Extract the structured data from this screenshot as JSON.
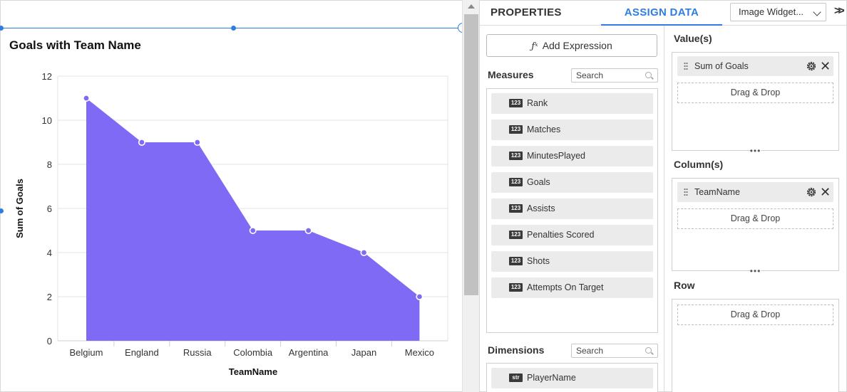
{
  "chart": {
    "title": "Goals with Team Name",
    "ylabel": "Sum of Goals",
    "xlabel": "TeamName"
  },
  "chart_data": {
    "type": "area",
    "title": "Goals with Team Name",
    "xlabel": "TeamName",
    "ylabel": "Sum of Goals",
    "categories": [
      "Belgium",
      "England",
      "Russia",
      "Colombia",
      "Argentina",
      "Japan",
      "Mexico"
    ],
    "values": [
      11,
      9,
      9,
      5,
      5,
      4,
      2
    ],
    "ylim": [
      0,
      12
    ],
    "yticks": [
      "0",
      "2",
      "4",
      "6",
      "8",
      "10",
      "12"
    ],
    "grid": true,
    "color": "#7f6af5"
  },
  "panel": {
    "tabs": [
      "PROPERTIES",
      "ASSIGN DATA"
    ],
    "widget_select": "Image Widget...",
    "add_expression": "Add Expression",
    "measures_label": "Measures",
    "search_placeholder": "Search",
    "measures": [
      "Rank",
      "Matches",
      "MinutesPlayed",
      "Goals",
      "Assists",
      "Penalties Scored",
      "Shots",
      "Attempts On Target"
    ],
    "measure_badge": "123",
    "dimensions_label": "Dimensions",
    "dimensions": [
      "PlayerName"
    ],
    "dimension_badge": "str",
    "values_label": "Value(s)",
    "value_field": "Sum of Goals",
    "columns_label": "Column(s)",
    "column_field": "TeamName",
    "row_label": "Row",
    "drag_drop": "Drag & Drop"
  },
  "colors": {
    "accent": "#2f7de1",
    "area": "#7f6af5"
  }
}
